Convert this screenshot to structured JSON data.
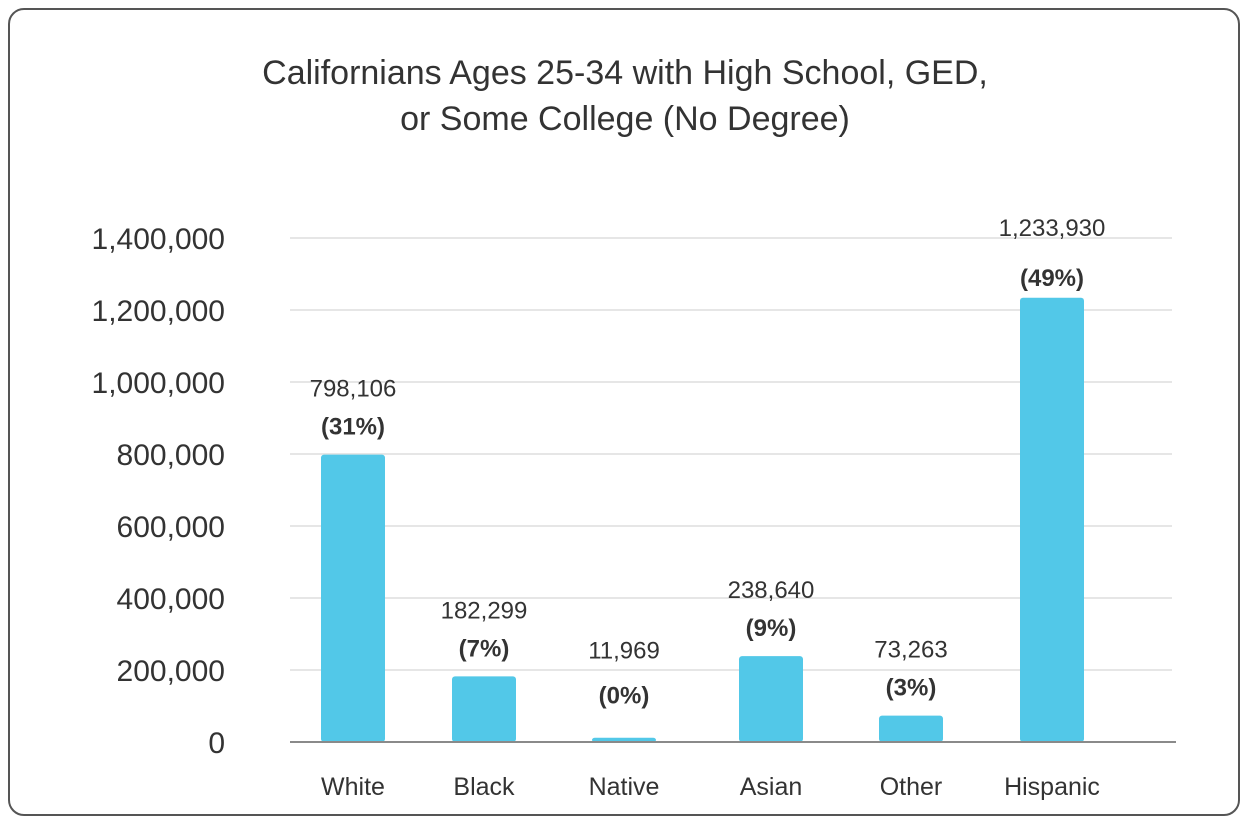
{
  "chart_data": {
    "type": "bar",
    "title_lines": [
      "Californians Ages 25-34 with High School, GED,",
      "or Some College (No Degree)"
    ],
    "categories": [
      "White",
      "Black",
      "Native",
      "Asian",
      "Other",
      "Hispanic"
    ],
    "values": [
      798106,
      182299,
      11969,
      238640,
      73263,
      1233930
    ],
    "value_labels": [
      "798,106",
      "182,299",
      "11,969",
      "238,640",
      "73,263",
      "1,233,930"
    ],
    "percent_labels": [
      "(31%)",
      "(7%)",
      "(0%)",
      "(9%)",
      "(3%)",
      "(49%)"
    ],
    "ylim": [
      0,
      1400000
    ],
    "yticks": [
      0,
      200000,
      400000,
      600000,
      800000,
      1000000,
      1200000,
      1400000
    ],
    "ytick_labels": [
      "0",
      "200,000",
      "400,000",
      "600,000",
      "800,000",
      "1,000,000",
      "1,200,000",
      "1,400,000"
    ],
    "grid": true,
    "colors": {
      "bar": "#52c8e8",
      "grid": "#e6e6e6",
      "axis": "#8a8a8a",
      "text": "#333333"
    }
  }
}
